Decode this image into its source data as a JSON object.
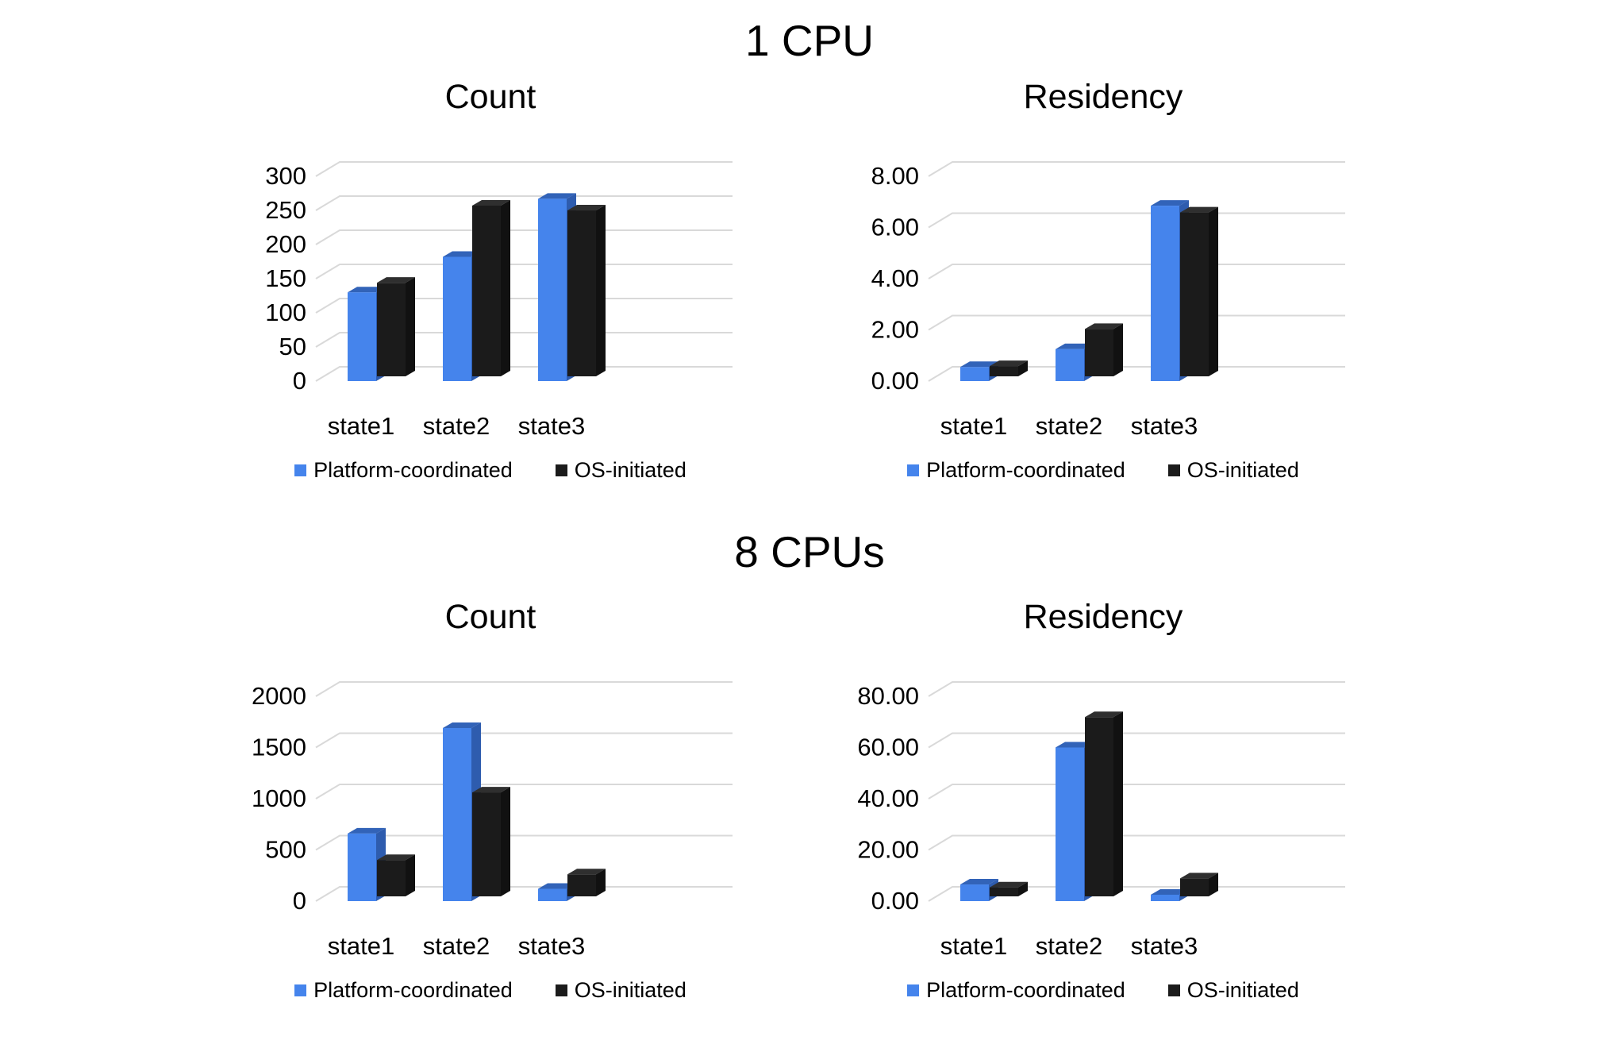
{
  "sections": [
    {
      "title": "1 CPU"
    },
    {
      "title": "8 CPUs"
    }
  ],
  "colors": {
    "gridline": "#d9d9d9",
    "text": "#000000",
    "background": "#ffffff",
    "platform_coordinated_blue": "#4584ec",
    "os_initiated_black": "#1b1b1b"
  },
  "chart_data": [
    {
      "type": "bar",
      "style": "3d-column",
      "section": "1 CPU",
      "title": "Count",
      "categories": [
        "state1",
        "state2",
        "state3"
      ],
      "series": [
        {
          "name": "Platform-coordinated",
          "color": "#4584ec",
          "color_top": "#3263b8",
          "color_side": "#2e5cae",
          "values": [
            130,
            182,
            267
          ]
        },
        {
          "name": "OS-initiated",
          "color": "#1b1b1b",
          "color_top": "#2f2f2f",
          "color_side": "#111111",
          "values": [
            137,
            250,
            243
          ]
        }
      ],
      "xlabel": "",
      "ylabel": "",
      "ylim": [
        0,
        300
      ],
      "yticks": [
        0,
        50,
        100,
        150,
        200,
        250,
        300
      ],
      "ytick_labels": [
        "0",
        "50",
        "100",
        "150",
        "200",
        "250",
        "300"
      ],
      "grid": true,
      "legend_position": "bottom"
    },
    {
      "type": "bar",
      "style": "3d-column",
      "section": "1 CPU",
      "title": "Residency",
      "categories": [
        "state1",
        "state2",
        "state3"
      ],
      "series": [
        {
          "name": "Platform-coordinated",
          "color": "#4584ec",
          "color_top": "#3263b8",
          "color_side": "#2e5cae",
          "values": [
            0.55,
            1.25,
            6.85
          ]
        },
        {
          "name": "OS-initiated",
          "color": "#1b1b1b",
          "color_top": "#2f2f2f",
          "color_side": "#111111",
          "values": [
            0.4,
            1.85,
            6.4
          ]
        }
      ],
      "xlabel": "",
      "ylabel": "",
      "ylim": [
        0,
        8
      ],
      "yticks": [
        0,
        2,
        4,
        6,
        8
      ],
      "ytick_labels": [
        "0.00",
        "2.00",
        "4.00",
        "6.00",
        "8.00"
      ],
      "grid": true,
      "legend_position": "bottom"
    },
    {
      "type": "bar",
      "style": "3d-column",
      "section": "8 CPUs",
      "title": "Count",
      "categories": [
        "state1",
        "state2",
        "state3"
      ],
      "series": [
        {
          "name": "Platform-coordinated",
          "color": "#4584ec",
          "color_top": "#3263b8",
          "color_side": "#2e5cae",
          "values": [
            660,
            1690,
            120
          ]
        },
        {
          "name": "OS-initiated",
          "color": "#1b1b1b",
          "color_top": "#2f2f2f",
          "color_side": "#111111",
          "values": [
            355,
            1015,
            215
          ]
        }
      ],
      "xlabel": "",
      "ylabel": "",
      "ylim": [
        0,
        2000
      ],
      "yticks": [
        0,
        500,
        1000,
        1500,
        2000
      ],
      "ytick_labels": [
        "0",
        "500",
        "1000",
        "1500",
        "2000"
      ],
      "grid": true,
      "legend_position": "bottom"
    },
    {
      "type": "bar",
      "style": "3d-column",
      "section": "8 CPUs",
      "title": "Residency",
      "categories": [
        "state1",
        "state2",
        "state3"
      ],
      "series": [
        {
          "name": "Platform-coordinated",
          "color": "#4584ec",
          "color_top": "#3263b8",
          "color_side": "#2e5cae",
          "values": [
            6.5,
            60,
            2.5
          ]
        },
        {
          "name": "OS-initiated",
          "color": "#1b1b1b",
          "color_top": "#2f2f2f",
          "color_side": "#111111",
          "values": [
            3.5,
            70,
            7
          ]
        }
      ],
      "xlabel": "",
      "ylabel": "",
      "ylim": [
        0,
        80
      ],
      "yticks": [
        0,
        20,
        40,
        60,
        80
      ],
      "ytick_labels": [
        "0.00",
        "20.00",
        "40.00",
        "60.00",
        "80.00"
      ],
      "grid": true,
      "legend_position": "bottom"
    }
  ]
}
